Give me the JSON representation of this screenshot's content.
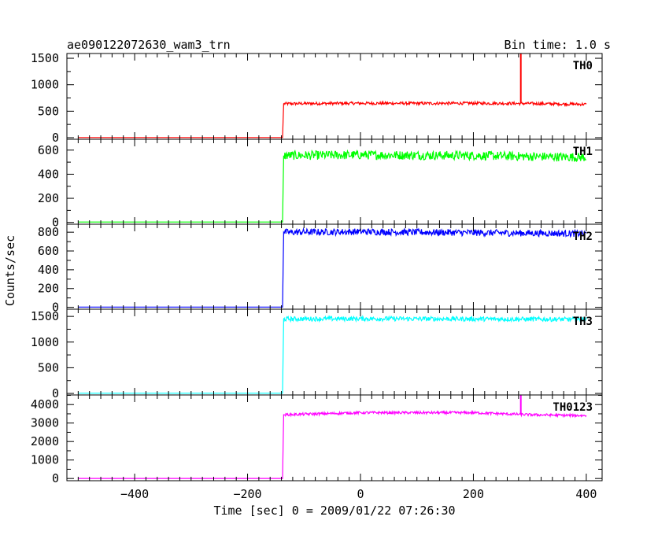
{
  "header": {
    "title": "ae090122072630_wam3_trn",
    "bin_time": "Bin time: 1.0 s"
  },
  "chart_data": {
    "type": "line",
    "xlabel": "Time [sec] 0 = 2009/01/22 07:26:30",
    "ylabel": "Counts/sec",
    "xlim": [
      -520,
      428
    ],
    "x_ticks": [
      -400,
      -200,
      0,
      200,
      400
    ],
    "x_tick_labels": [
      "−400",
      "−200",
      "0",
      "200",
      "400"
    ],
    "step_time": -137,
    "series": [
      {
        "name": "TH0",
        "color": "#ff0000",
        "ylim": [
          -30,
          1590
        ],
        "y_ticks": [
          0,
          500,
          1000,
          1500
        ],
        "y_tick_labels": [
          "0",
          "500",
          "1000",
          "1500"
        ],
        "baseline": 3,
        "level": 640,
        "noise": 55,
        "points": [
          [
            -500,
            3
          ],
          [
            -138,
            3
          ],
          [
            -136,
            640
          ],
          [
            -100,
            645
          ],
          [
            0,
            650
          ],
          [
            100,
            648
          ],
          [
            200,
            650
          ],
          [
            300,
            645
          ],
          [
            400,
            630
          ]
        ],
        "spike": {
          "x": 284,
          "y": 1590
        }
      },
      {
        "name": "TH1",
        "color": "#00ff00",
        "ylim": [
          -15,
          690
        ],
        "y_ticks": [
          0,
          200,
          400,
          600
        ],
        "y_tick_labels": [
          "0",
          "200",
          "400",
          "600"
        ],
        "baseline": 3,
        "level": 555,
        "noise": 75,
        "points": [
          [
            -500,
            3
          ],
          [
            -138,
            3
          ],
          [
            -136,
            555
          ],
          [
            0,
            560
          ],
          [
            200,
            555
          ],
          [
            400,
            540
          ]
        ]
      },
      {
        "name": "TH2",
        "color": "#0000ff",
        "ylim": [
          -20,
          885
        ],
        "y_ticks": [
          0,
          200,
          400,
          600,
          800
        ],
        "y_tick_labels": [
          "0",
          "200",
          "400",
          "600",
          "800"
        ],
        "baseline": 3,
        "level": 800,
        "noise": 70,
        "points": [
          [
            -500,
            3
          ],
          [
            -138,
            3
          ],
          [
            -136,
            800
          ],
          [
            0,
            805
          ],
          [
            200,
            795
          ],
          [
            400,
            785
          ]
        ]
      },
      {
        "name": "TH3",
        "color": "#00ffff",
        "ylim": [
          -30,
          1640
        ],
        "y_ticks": [
          0,
          500,
          1000,
          1500
        ],
        "y_tick_labels": [
          "0",
          "500",
          "1000",
          "1500"
        ],
        "baseline": 3,
        "level": 1450,
        "noise": 90,
        "points": [
          [
            -500,
            3
          ],
          [
            -138,
            3
          ],
          [
            -136,
            1450
          ],
          [
            0,
            1455
          ],
          [
            200,
            1450
          ],
          [
            400,
            1440
          ]
        ]
      },
      {
        "name": "TH0123",
        "color": "#ff00ff",
        "ylim": [
          -120,
          4520
        ],
        "y_ticks": [
          0,
          1000,
          2000,
          3000,
          4000
        ],
        "y_tick_labels": [
          "0",
          "1000",
          "2000",
          "3000",
          "4000"
        ],
        "baseline": 3,
        "level": 3500,
        "noise": 140,
        "points": [
          [
            -500,
            3
          ],
          [
            -138,
            3
          ],
          [
            -136,
            3450
          ],
          [
            0,
            3560
          ],
          [
            200,
            3560
          ],
          [
            300,
            3450
          ],
          [
            400,
            3400
          ]
        ],
        "spike": {
          "x": 284,
          "y": 4520
        }
      }
    ]
  }
}
